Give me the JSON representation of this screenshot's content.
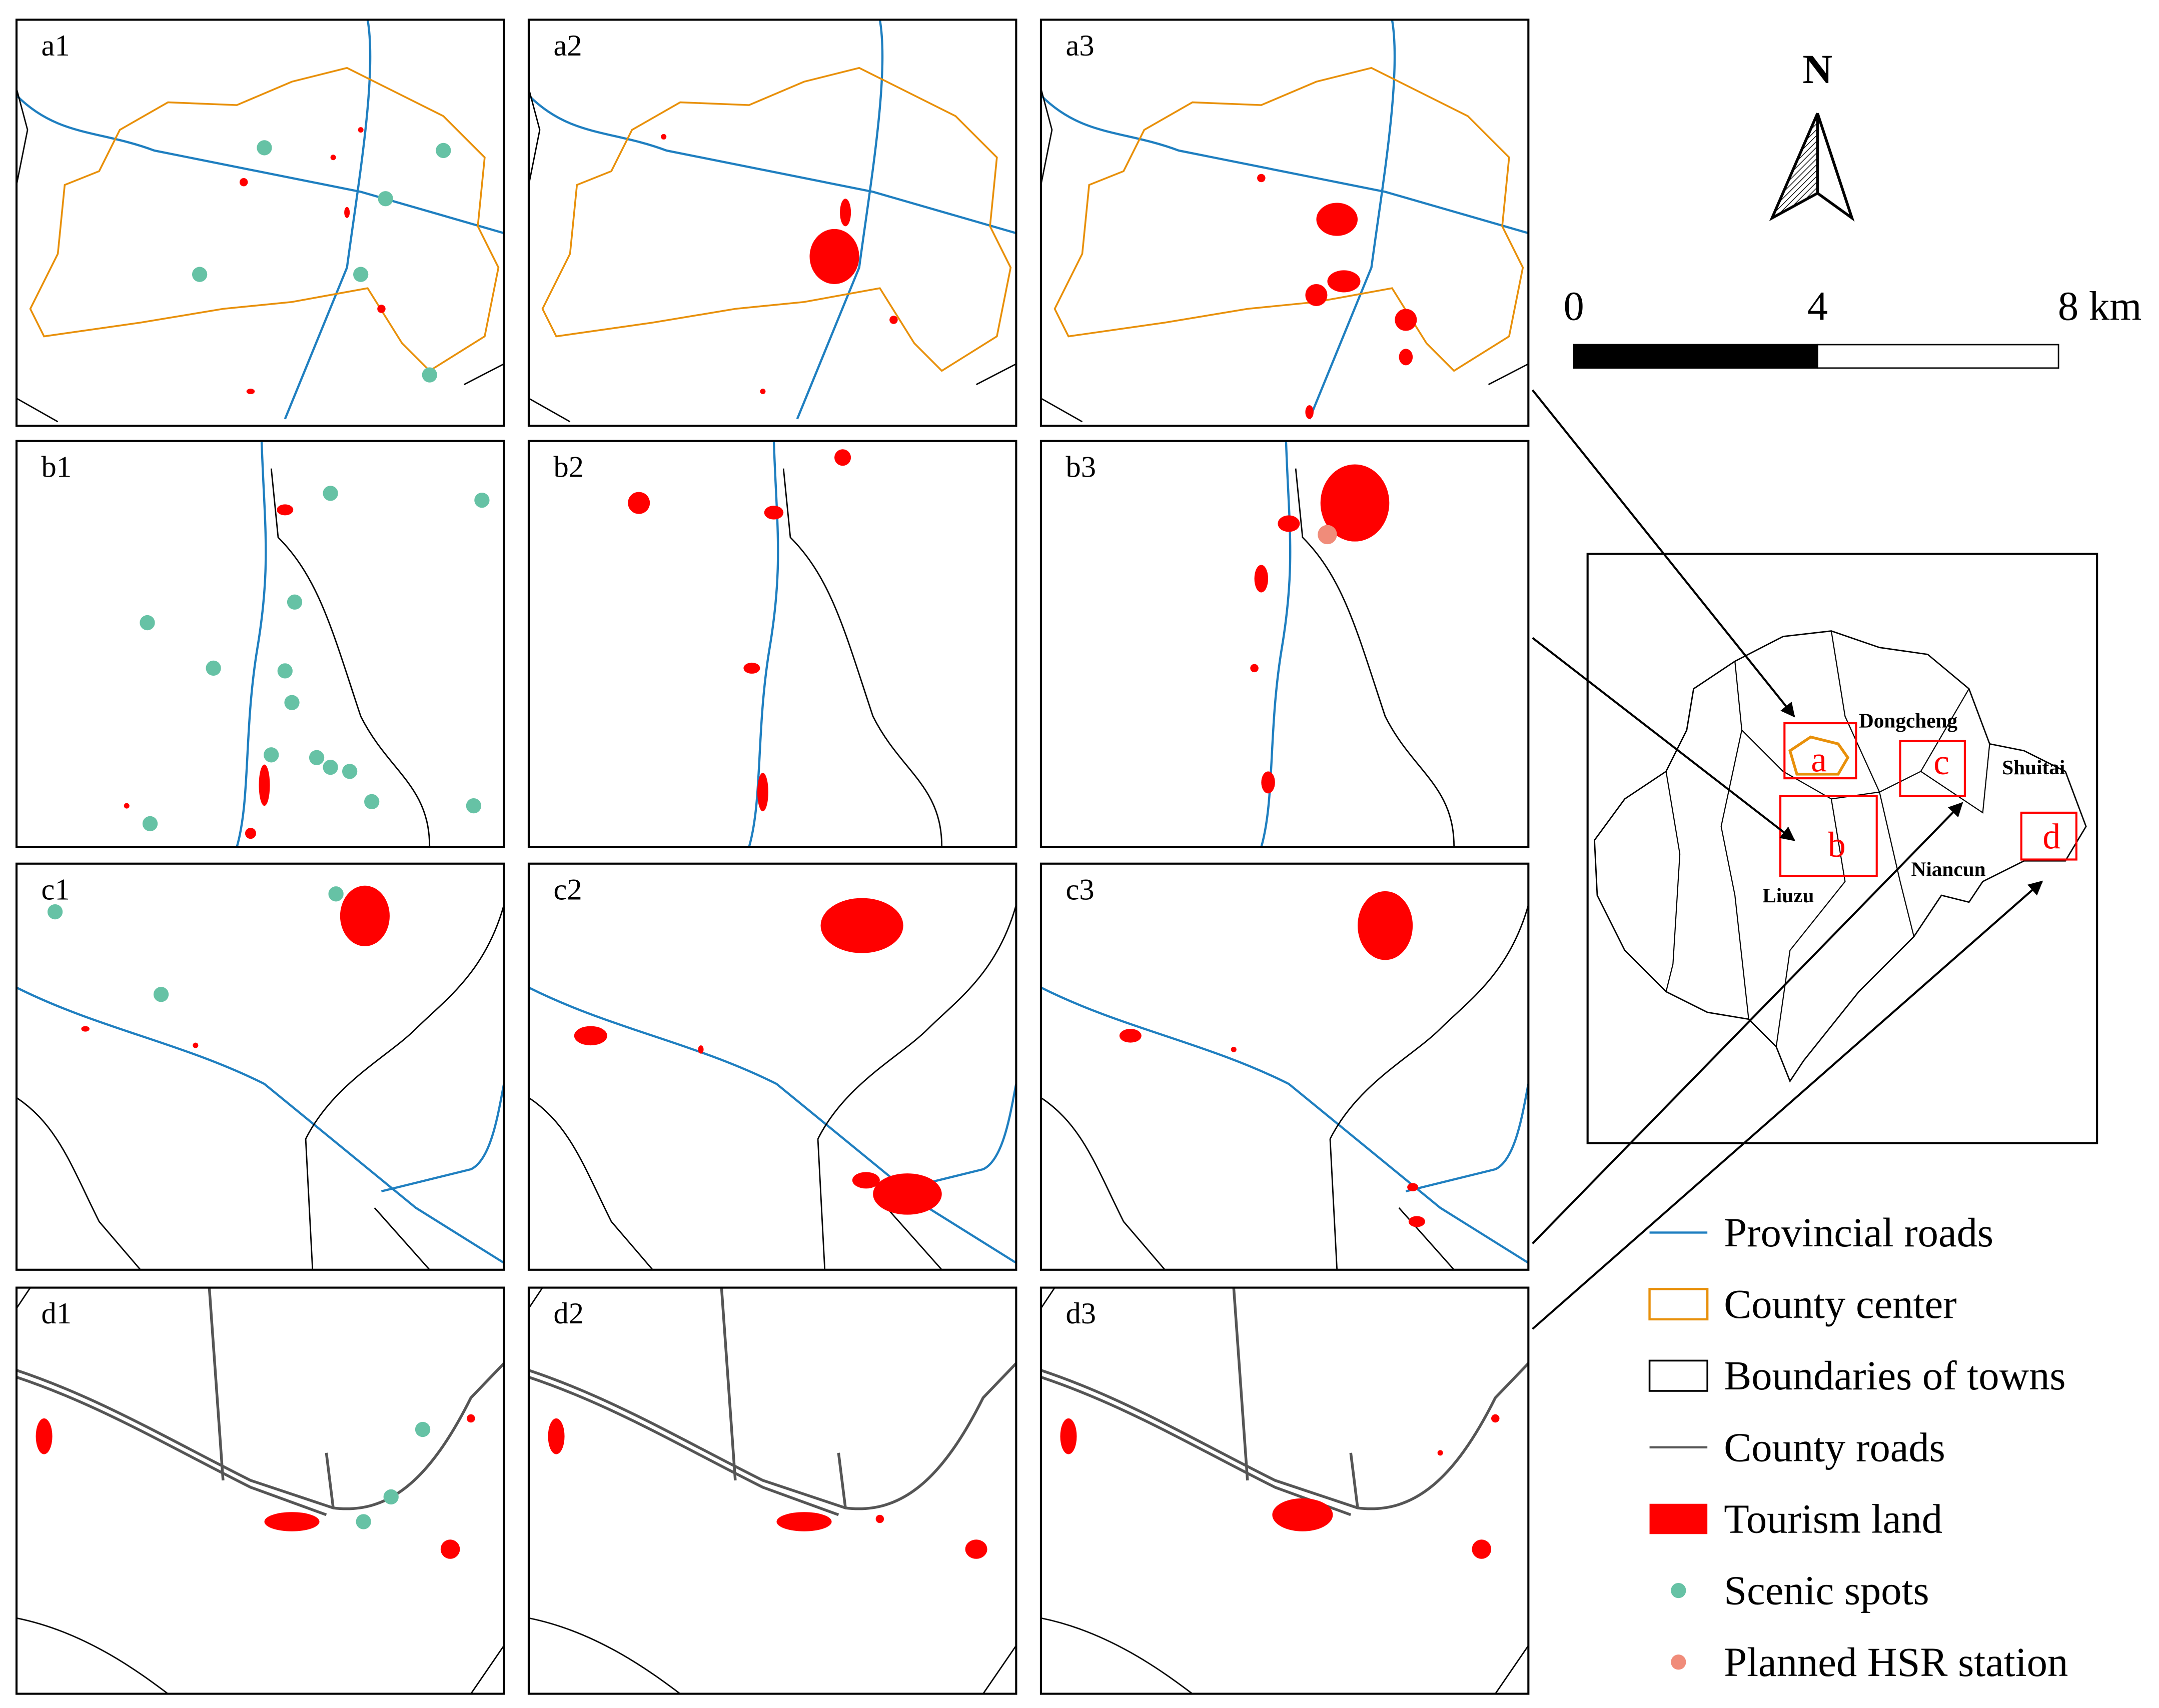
{
  "panels": [
    "a1",
    "a2",
    "a3",
    "b1",
    "b2",
    "b3",
    "c1",
    "c2",
    "c3",
    "d1",
    "d2",
    "d3"
  ],
  "north": "N",
  "scale_bar": [
    "0",
    "4",
    "8 km"
  ],
  "inset": {
    "towns": [
      "Dongcheng",
      "Shuitai",
      "Niancun",
      "Liuzu"
    ],
    "boxes": [
      "a",
      "b",
      "c",
      "d"
    ]
  },
  "legend": [
    "Provincial roads",
    "County center",
    "Boundaries of towns",
    "County roads",
    "Tourism land",
    "Scenic spots",
    "Planned HSR station"
  ]
}
